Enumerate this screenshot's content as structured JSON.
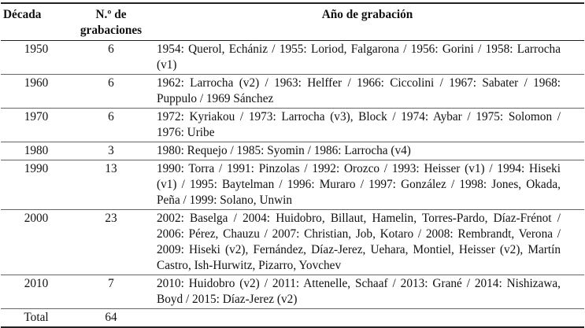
{
  "table": {
    "header": [
      "Década",
      "N.º de grabaciones",
      "Año de grabación"
    ],
    "rows": [
      [
        "1950",
        6,
        "1954: Querol, Echániz / 1955: Loriod, Falgarona / 1956: Gorini / 1958: Larrocha (v1)"
      ],
      [
        "1960",
        6,
        "1962: Larrocha (v2) / 1963: Helffer / 1966: Ciccolini / 1967: Sabater / 1968: Puppulo / 1969 Sánchez"
      ],
      [
        "1970",
        6,
        "1972: Kyriakou / 1973: Larrocha (v3), Block / 1974: Aybar / 1975: Solomon / 1976: Uribe"
      ],
      [
        "1980",
        3,
        "1980: Requejo / 1985: Syomin / 1986: Larrocha (v4)"
      ],
      [
        "1990",
        13,
        "1990: Torra / 1991: Pinzolas / 1992: Orozco / 1993: Heisser (v1) / 1994: Hiseki (v1) / 1995: Baytelman / 1996: Muraro / 1997: González / 1998: Jones, Okada, Peña / 1999: Solano, Unwin"
      ],
      [
        "2000",
        23,
        "2002: Baselga / 2004: Huidobro, Billaut, Hamelin, Torres-Pardo, Díaz-Frénot / 2006: Pérez, Chauzu / 2007: Christian, Job, Kotaro / 2008: Rembrandt, Verona / 2009: Hiseki (v2), Fernández, Díaz-Jerez, Uehara, Montiel, Heisser (v2), Martín Castro, Ish-Hurwitz, Pizarro, Yovchev"
      ],
      [
        "2010",
        7,
        "2010: Huidobro (v2) / 2011: Attenelle, Schaaf / 2013: Grané / 2014: Nishizawa, Boyd / 2015: Díaz-Jerez (v2)"
      ],
      [
        "Total",
        64,
        ""
      ]
    ]
  }
}
